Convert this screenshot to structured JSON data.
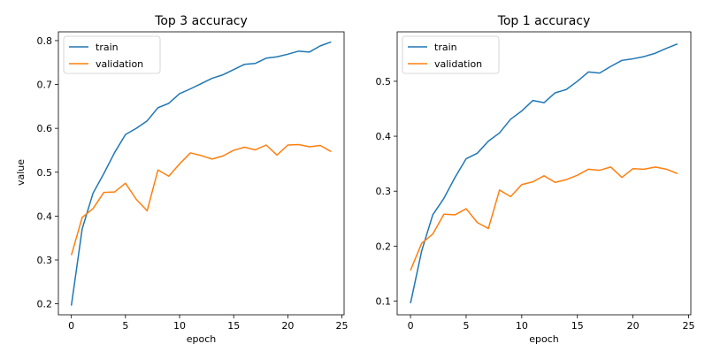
{
  "figure": {
    "ylabel_left": "value"
  },
  "chart_data": [
    {
      "type": "line",
      "title": "Top 3 accuracy",
      "xlabel": "epoch",
      "ylabel": "value",
      "xlim": [
        -1.2,
        25.2
      ],
      "ylim": [
        0.175,
        0.82
      ],
      "xticks": [
        0,
        5,
        10,
        15,
        20,
        25
      ],
      "yticks": [
        0.2,
        0.3,
        0.4,
        0.5,
        0.6,
        0.7,
        0.8
      ],
      "x": [
        0,
        1,
        2,
        3,
        4,
        5,
        6,
        7,
        8,
        9,
        10,
        11,
        12,
        13,
        14,
        15,
        16,
        17,
        18,
        19,
        20,
        21,
        22,
        23,
        24
      ],
      "legend_loc": "upper left",
      "series": [
        {
          "name": "train",
          "color": "#1f77b4",
          "values": [
            0.196,
            0.371,
            0.452,
            0.497,
            0.545,
            0.586,
            0.6,
            0.617,
            0.647,
            0.657,
            0.679,
            0.69,
            0.702,
            0.714,
            0.722,
            0.734,
            0.746,
            0.748,
            0.76,
            0.763,
            0.769,
            0.776,
            0.774,
            0.788,
            0.797
          ]
        },
        {
          "name": "validation",
          "color": "#ff7f0e",
          "values": [
            0.311,
            0.397,
            0.417,
            0.454,
            0.455,
            0.475,
            0.438,
            0.412,
            0.505,
            0.491,
            0.519,
            0.544,
            0.538,
            0.53,
            0.537,
            0.55,
            0.557,
            0.551,
            0.562,
            0.539,
            0.562,
            0.563,
            0.558,
            0.561,
            0.547
          ]
        }
      ]
    },
    {
      "type": "line",
      "title": "Top 1 accuracy",
      "xlabel": "epoch",
      "ylabel": "",
      "xlim": [
        -1.2,
        25.2
      ],
      "ylim": [
        0.075,
        0.59
      ],
      "xticks": [
        0,
        5,
        10,
        15,
        20,
        25
      ],
      "yticks": [
        0.1,
        0.2,
        0.3,
        0.4,
        0.5
      ],
      "x": [
        0,
        1,
        2,
        3,
        4,
        5,
        6,
        7,
        8,
        9,
        10,
        11,
        12,
        13,
        14,
        15,
        16,
        17,
        18,
        19,
        20,
        21,
        22,
        23,
        24
      ],
      "legend_loc": "upper left",
      "series": [
        {
          "name": "train",
          "color": "#1f77b4",
          "values": [
            0.096,
            0.191,
            0.257,
            0.287,
            0.325,
            0.359,
            0.369,
            0.391,
            0.406,
            0.431,
            0.446,
            0.465,
            0.461,
            0.479,
            0.485,
            0.5,
            0.517,
            0.515,
            0.527,
            0.538,
            0.541,
            0.545,
            0.551,
            0.56,
            0.568
          ]
        },
        {
          "name": "validation",
          "color": "#ff7f0e",
          "values": [
            0.156,
            0.205,
            0.222,
            0.258,
            0.257,
            0.268,
            0.243,
            0.232,
            0.302,
            0.29,
            0.312,
            0.317,
            0.328,
            0.316,
            0.321,
            0.329,
            0.34,
            0.338,
            0.344,
            0.325,
            0.341,
            0.34,
            0.344,
            0.34,
            0.332
          ]
        }
      ]
    }
  ]
}
